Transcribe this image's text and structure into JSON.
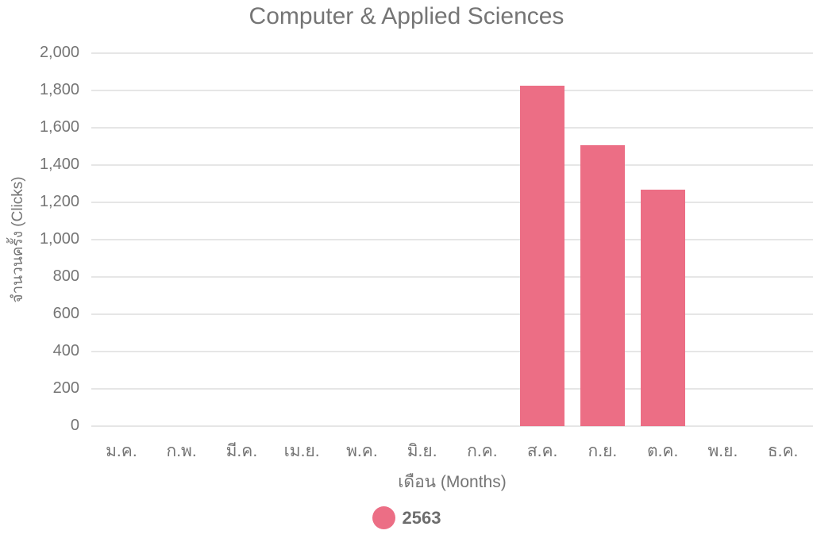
{
  "chart_data": {
    "type": "bar",
    "title": "Computer & Applied Sciences",
    "categories": [
      "ม.ค.",
      "ก.พ.",
      "มี.ค.",
      "เม.ย.",
      "พ.ค.",
      "มิ.ย.",
      "ก.ค.",
      "ส.ค.",
      "ก.ย.",
      "ต.ค.",
      "พ.ย.",
      "ธ.ค."
    ],
    "series": [
      {
        "name": "2563",
        "color": "#ec6e85",
        "values": [
          null,
          null,
          null,
          null,
          null,
          null,
          null,
          1825,
          1505,
          1270,
          null,
          null
        ]
      }
    ],
    "xlabel": "เดือน (Months)",
    "ylabel": "จำนวนครั้ง (Clicks)",
    "ylim": [
      0,
      2000
    ],
    "y_tick_step": 200,
    "y_tick_labels": [
      "0",
      "200",
      "400",
      "600",
      "800",
      "1,000",
      "1,200",
      "1,400",
      "1,600",
      "1,800",
      "2,000"
    ],
    "grid": true,
    "legend_position": "bottom",
    "background_color": "#ffffff",
    "gridline_color": "#e6e6e6"
  }
}
